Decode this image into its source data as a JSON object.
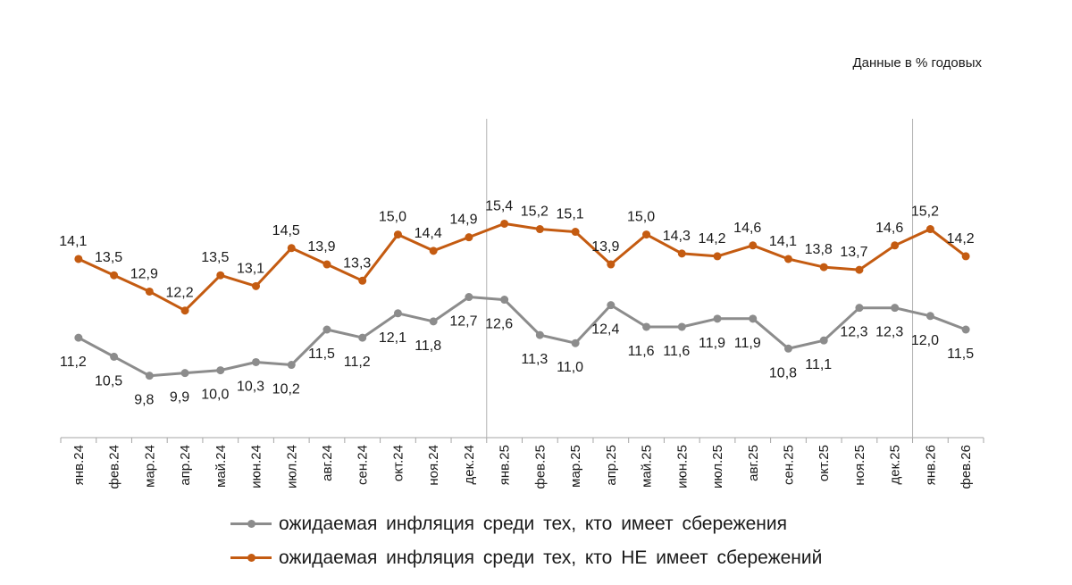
{
  "note": "Данные в % годовых",
  "chart_data": {
    "type": "line",
    "categories": [
      "янв.24",
      "фев.24",
      "мар.24",
      "апр.24",
      "май.24",
      "июн.24",
      "июл.24",
      "авг.24",
      "сен.24",
      "окт.24",
      "ноя.24",
      "дек.24",
      "янв.25",
      "фев.25",
      "мар.25",
      "апр.25",
      "май.25",
      "июн.25",
      "июл.25",
      "авг.25",
      "сен.25",
      "окт.25",
      "ноя.25",
      "дек.25",
      "янв.26",
      "фев.26"
    ],
    "series": [
      {
        "name": "ожидаемая инфляция среди тех, кто имеет сбережения",
        "color": "#8c8c8c",
        "values": [
          11.2,
          10.5,
          9.8,
          9.9,
          10.0,
          10.3,
          10.2,
          11.5,
          11.2,
          12.1,
          11.8,
          12.7,
          12.6,
          11.3,
          11.0,
          12.4,
          11.6,
          11.6,
          11.9,
          11.9,
          10.8,
          11.1,
          12.3,
          12.3,
          12.0,
          11.5
        ],
        "labels": [
          "11,2",
          "10,5",
          "9,8",
          "9,9",
          "10,0",
          "10,3",
          "10,2",
          "11,5",
          "11,2",
          "12,1",
          "11,8",
          "12,7",
          "12,6",
          "11,3",
          "11,0",
          "12,4",
          "11,6",
          "11,6",
          "11,9",
          "11,9",
          "10,8",
          "11,1",
          "12,3",
          "12,3",
          "12,0",
          "11,5"
        ]
      },
      {
        "name": "ожидаемая инфляция среди тех, кто НЕ имеет сбережений",
        "color": "#c45b11",
        "values": [
          14.1,
          13.5,
          12.9,
          12.2,
          13.5,
          13.1,
          14.5,
          13.9,
          13.3,
          15.0,
          14.4,
          14.9,
          15.4,
          15.2,
          15.1,
          13.9,
          15.0,
          14.3,
          14.2,
          14.6,
          14.1,
          13.8,
          13.7,
          14.6,
          15.2,
          14.2
        ],
        "labels": [
          "14,1",
          "13,5",
          "12,9",
          "12,2",
          "13,5",
          "13,1",
          "14,5",
          "13,9",
          "13,3",
          "15,0",
          "14,4",
          "14,9",
          "15,4",
          "15,2",
          "15,1",
          "13,9",
          "15,0",
          "14,3",
          "14,2",
          "14,6",
          "14,1",
          "13,8",
          "13,7",
          "14,6",
          "15,2",
          "14,2"
        ]
      }
    ],
    "year_separators_after": [
      "дек.24",
      "дек.25"
    ],
    "legend_position": "bottom"
  }
}
